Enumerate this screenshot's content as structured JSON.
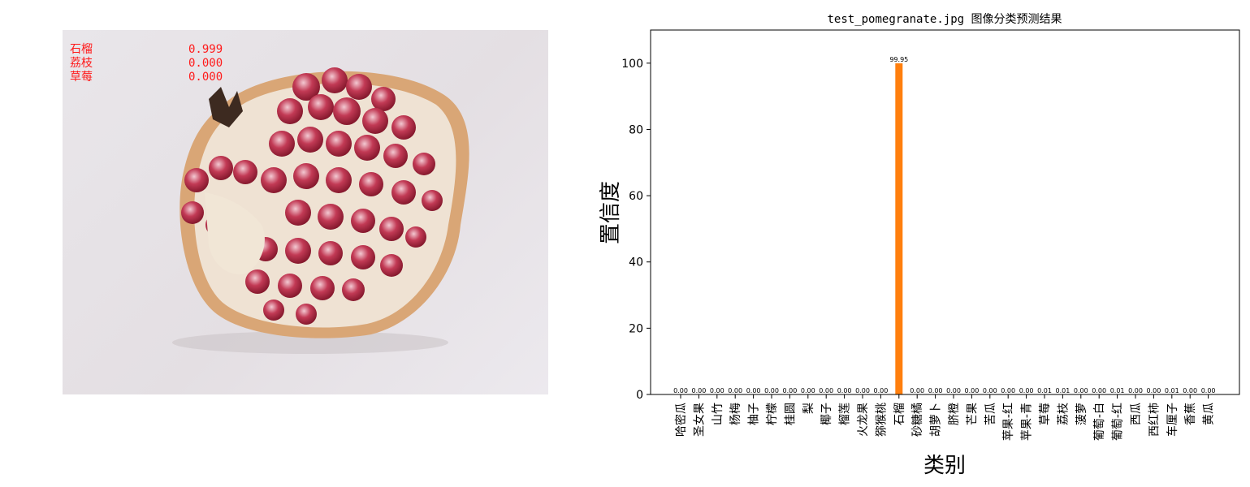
{
  "image_panel": {
    "predictions": [
      {
        "label": "石榴",
        "score": "0.999"
      },
      {
        "label": "荔枝",
        "score": "0.000"
      },
      {
        "label": "草莓",
        "score": "0.000"
      }
    ]
  },
  "chart_data": {
    "type": "bar",
    "title": "test_pomegranate.jpg 图像分类预测结果",
    "xlabel": "类别",
    "ylabel": "置信度",
    "ylim": [
      0,
      110
    ],
    "yticks": [
      0,
      20,
      40,
      60,
      80,
      100
    ],
    "categories": [
      "哈密瓜",
      "圣女果",
      "山竹",
      "杨梅",
      "柚子",
      "柠檬",
      "桂圆",
      "梨",
      "椰子",
      "榴莲",
      "火龙果",
      "猕猴桃",
      "石榴",
      "砂糖橘",
      "胡萝卜",
      "脐橙",
      "芒果",
      "苦瓜",
      "苹果-红",
      "苹果-青",
      "草莓",
      "荔枝",
      "菠萝",
      "葡萄-白",
      "葡萄-红",
      "西瓜",
      "西红柿",
      "车厘子",
      "香蕉",
      "黄瓜"
    ],
    "values": [
      0,
      0,
      0,
      0,
      0,
      0,
      0,
      0,
      0,
      0,
      0,
      0,
      99.95,
      0,
      0,
      0,
      0,
      0,
      0,
      0,
      0.01,
      0.01,
      0,
      0,
      0.01,
      0,
      0,
      0.01,
      0,
      0
    ],
    "value_labels": [
      "0.00",
      "0.00",
      "0.00",
      "0.00",
      "0.00",
      "0.00",
      "0.00",
      "0.00",
      "0.00",
      "0.00",
      "0.00",
      "0.00",
      "99.95",
      "0.00",
      "0.00",
      "0.00",
      "0.00",
      "0.00",
      "0.00",
      "0.00",
      "0.01",
      "0.01",
      "0.00",
      "0.00",
      "0.01",
      "0.00",
      "0.00",
      "0.01",
      "0.00",
      "0.00"
    ],
    "highlight_index": 12,
    "colors": {
      "bar": "#1f77b4",
      "highlight": "#ff7f0e",
      "axis": "#000000"
    }
  }
}
